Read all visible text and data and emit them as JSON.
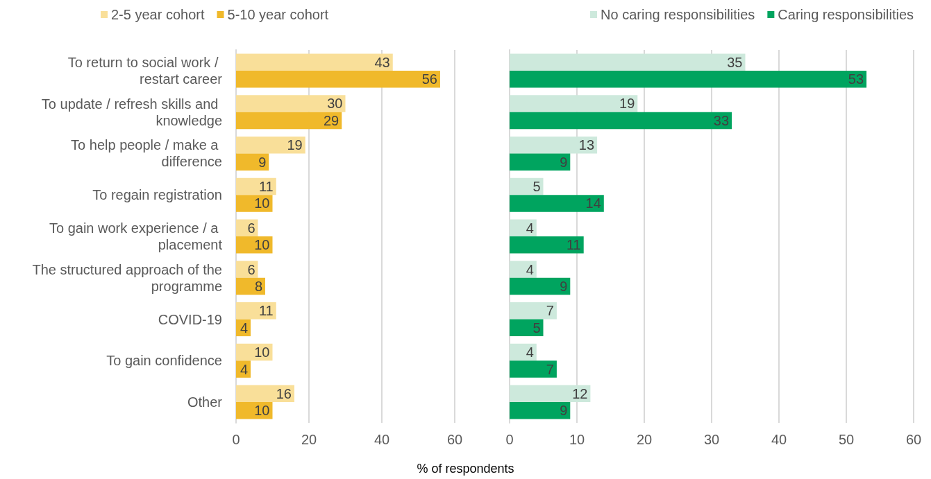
{
  "chart_data": [
    {
      "type": "bar",
      "orientation": "horizontal",
      "xlabel": "% of respondents",
      "categories": [
        "To return to social work / restart career",
        "To update / refresh skills and knowledge",
        "To help people / make a difference",
        "To regain registration",
        "To gain work experience / a placement",
        "The structured approach of the programme",
        "COVID-19",
        "To gain confidence",
        "Other"
      ],
      "series": [
        {
          "name": "2-5 year cohort",
          "color": "#f9df99",
          "values": [
            43,
            30,
            19,
            11,
            6,
            6,
            11,
            10,
            16
          ]
        },
        {
          "name": "5-10 year cohort",
          "color": "#f0b92b",
          "values": [
            56,
            29,
            9,
            10,
            10,
            8,
            4,
            4,
            10
          ]
        }
      ],
      "xlim": [
        0,
        60
      ],
      "xticks": [
        0,
        20,
        40,
        60
      ],
      "grid": "x",
      "legend": "top left",
      "data_labels": true
    },
    {
      "type": "bar",
      "orientation": "horizontal",
      "categories": [
        null,
        null,
        null,
        null,
        null,
        null,
        null,
        null,
        null
      ],
      "series": [
        {
          "name": "No caring responsibilities",
          "color": "#cde9dc",
          "values": [
            35,
            19,
            13,
            5,
            4,
            4,
            7,
            4,
            12
          ]
        },
        {
          "name": "Caring responsibilities",
          "color": "#00a45f",
          "values": [
            53,
            33,
            9,
            14,
            11,
            9,
            5,
            7,
            9
          ]
        }
      ],
      "xlim": [
        0,
        60
      ],
      "xticks": [
        0,
        10,
        20,
        30,
        40,
        50,
        60
      ],
      "grid": "x",
      "legend": "top right",
      "data_labels": true,
      "tick_labels": "x"
    }
  ]
}
